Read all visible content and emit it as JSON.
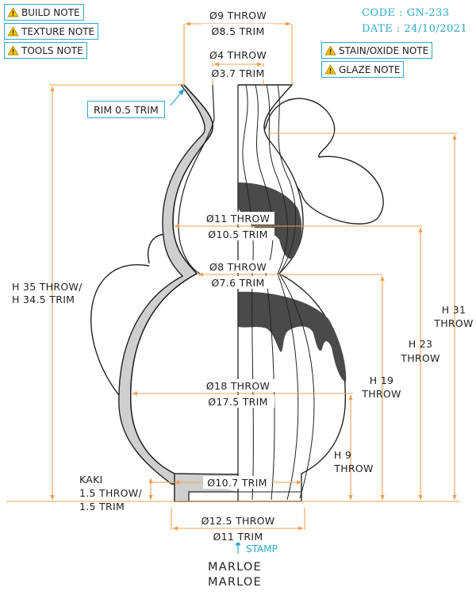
{
  "header": {
    "notes_left": [
      {
        "label": "BUILD NOTE"
      },
      {
        "label": "TEXTURE NOTE"
      },
      {
        "label": "TOOLS NOTE"
      }
    ],
    "notes_right": [
      {
        "label": "STAIN/OXIDE NOTE"
      },
      {
        "label": "GLAZE NOTE"
      }
    ],
    "code": "CODE : GN-233",
    "date": "DATE : 24/10/2021",
    "warning_icon": "warning-triangle-icon"
  },
  "dimensions": {
    "top_throw": "Ø9 THROW",
    "top_trim": "Ø8.5 TRIM",
    "neck_throw": "Ø4 THROW",
    "neck_trim": "Ø3.7 TRIM",
    "rim_callout": "RIM 0.5 TRIM",
    "upper_bulb_throw": "Ø11 THROW",
    "upper_bulb_trim": "Ø10.5 TRIM",
    "waist_throw": "Ø8 THROW",
    "waist_trim": "Ø7.6 TRIM",
    "lower_bulb_throw": "Ø18 THROW",
    "lower_bulb_trim": "Ø17.5 TRIM",
    "foot_trim": "Ø10.7 TRIM",
    "base_throw": "Ø12.5 THROW",
    "base_trim": "Ø11 TRIM",
    "total_height": [
      "H 35 THROW/",
      "H 34.5 TRIM"
    ],
    "h31": [
      "H 31",
      "THROW"
    ],
    "h23": [
      "H 23",
      "THROW"
    ],
    "h19": [
      "H 19",
      "THROW"
    ],
    "h9": [
      "H 9",
      "THROW"
    ],
    "kaki": [
      "KAKI",
      "1.5 THROW/",
      "1.5 TRIM"
    ]
  },
  "stamp_label": "STAMP",
  "brand_lines": [
    "MARLOE",
    "MARLOE"
  ],
  "colors": {
    "accent": "#2ea8c9",
    "dimension": "#f0a050",
    "glaze": "#4a4a4a",
    "wall": "#d0d0d0",
    "warning": "#f2c200"
  }
}
